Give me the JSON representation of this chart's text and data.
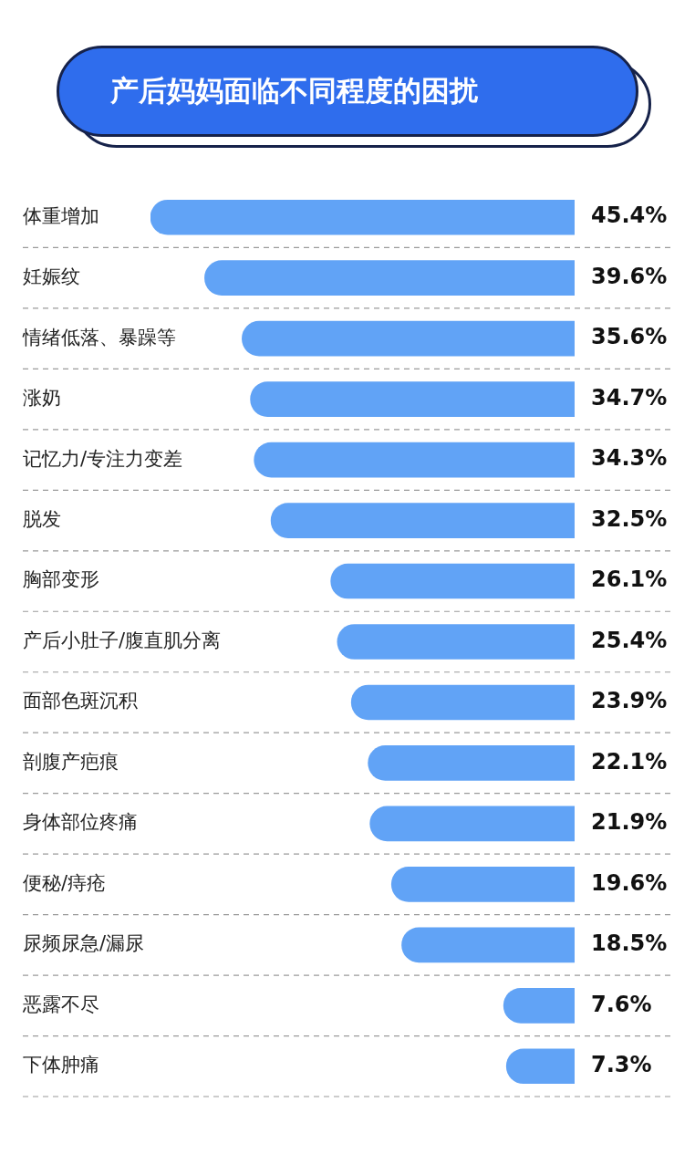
{
  "chart_data": {
    "type": "bar",
    "orientation": "horizontal",
    "title": "产后妈妈面临不同程度的困扰",
    "categories": [
      "体重增加",
      "妊娠纹",
      "情绪低落、暴躁等",
      "涨奶",
      "记忆力/专注力变差",
      "脱发",
      "胸部变形",
      "产后小肚子/腹直肌分离",
      "面部色斑沉积",
      "剖腹产疤痕",
      "身体部位疼痛",
      "便秘/痔疮",
      "尿频尿急/漏尿",
      "恶露不尽",
      "下体肿痛"
    ],
    "values": [
      45.4,
      39.6,
      35.6,
      34.7,
      34.3,
      32.5,
      26.1,
      25.4,
      23.9,
      22.1,
      21.9,
      19.6,
      18.5,
      7.6,
      7.3
    ],
    "value_labels": [
      "45.4%",
      "39.6%",
      "35.6%",
      "34.7%",
      "34.3%",
      "32.5%",
      "26.1%",
      "25.4%",
      "23.9%",
      "22.1%",
      "21.9%",
      "19.6%",
      "18.5%",
      "7.6%",
      "7.3%"
    ],
    "color": "#61a3f6",
    "grid": "y",
    "legend": false
  }
}
